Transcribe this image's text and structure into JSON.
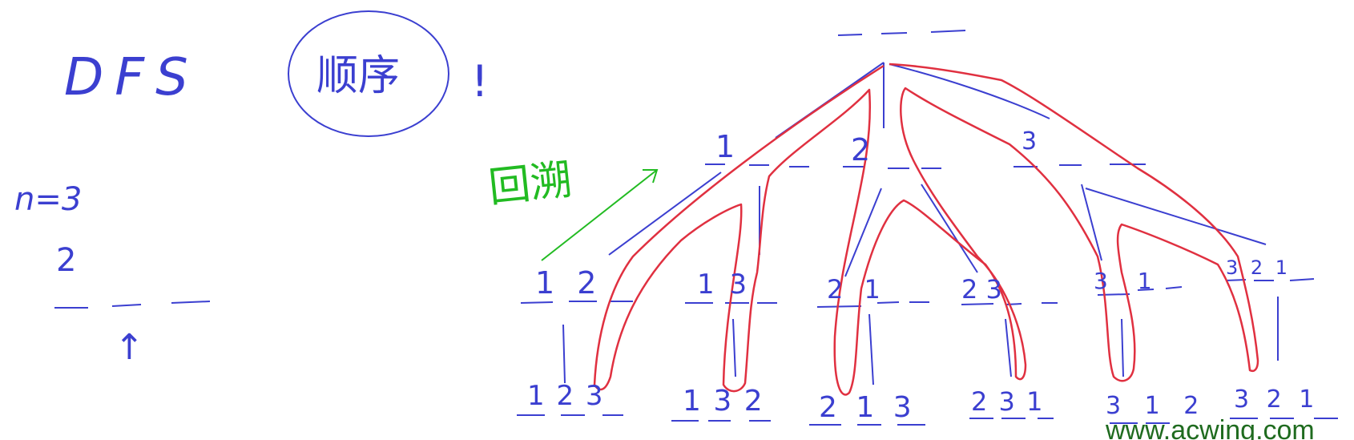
{
  "title": "DFS",
  "order_note": "顺序",
  "exclaim": "!",
  "n_label": "n=3",
  "example": {
    "digit": "2",
    "arrow": "↑"
  },
  "backtrack_label": "回溯",
  "watermark": "www.acwing.com",
  "colors": {
    "ink_blue": "#3b3fd0",
    "ink_red": "#e03040",
    "ink_green": "#22bb22"
  },
  "tree": {
    "root": "_ _ _",
    "level1": [
      "1",
      "2",
      "3"
    ],
    "level2": [
      "1 2",
      "1 3",
      "2 1",
      "2 3",
      "3 1",
      "3 2 1"
    ],
    "leaves": [
      "1 2 3",
      "1 3 2",
      "2 1 3",
      "2 3 1",
      "3 1 2",
      "3 2 1"
    ]
  }
}
